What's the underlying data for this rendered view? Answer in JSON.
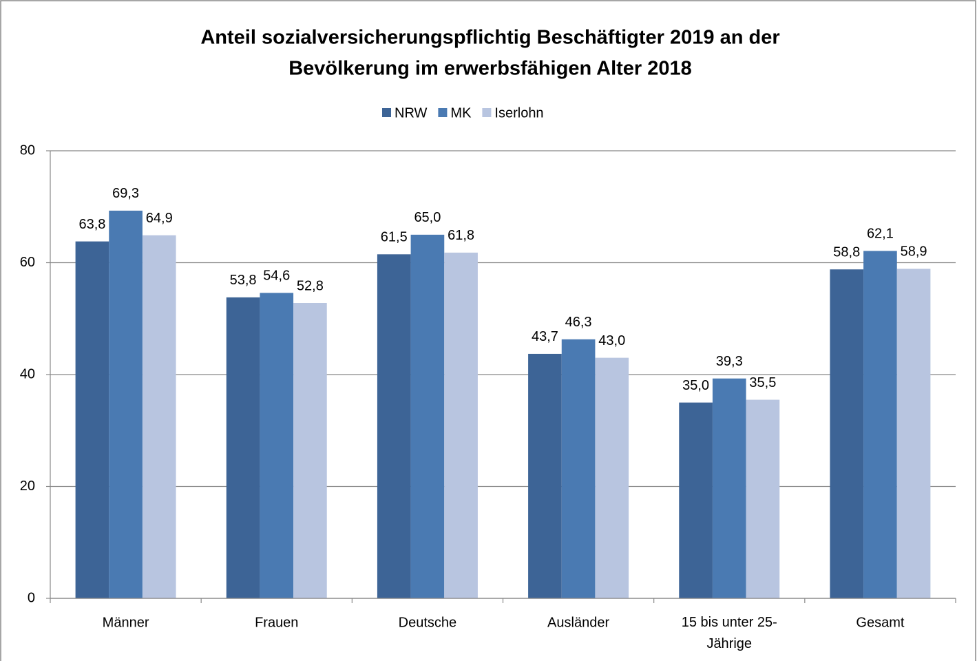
{
  "chart_data": {
    "type": "bar",
    "title": [
      "Anteil sozialversicherungspflichtig Beschäftigter 2019 an der",
      "Bevölkerung im erwerbsfähigen Alter 2018"
    ],
    "categories": [
      "Männer",
      "Frauen",
      "Deutsche",
      "Ausländer",
      "15 bis unter 25-Jährige",
      "Gesamt"
    ],
    "series": [
      {
        "name": "NRW",
        "color": "#3d6496",
        "values": [
          63.8,
          53.8,
          61.5,
          43.7,
          35.0,
          58.8
        ],
        "value_labels": [
          "63,8",
          "53,8",
          "61,5",
          "43,7",
          "35,0",
          "58,8"
        ]
      },
      {
        "name": "MK",
        "color": "#4a7ab2",
        "values": [
          69.3,
          54.6,
          65.0,
          46.3,
          39.3,
          62.1
        ],
        "value_labels": [
          "69,3",
          "54,6",
          "65,0",
          "46,3",
          "39,3",
          "62,1"
        ]
      },
      {
        "name": "Iserlohn",
        "color": "#b8c5e0",
        "values": [
          64.9,
          52.8,
          61.8,
          43.0,
          35.5,
          58.9
        ],
        "value_labels": [
          "64,9",
          "52,8",
          "61,8",
          "43,0",
          "35,5",
          "58,9"
        ]
      }
    ],
    "ylim": [
      0,
      80
    ],
    "yticks": [
      0,
      20,
      40,
      60,
      80
    ],
    "grid": true,
    "legend": "top"
  }
}
